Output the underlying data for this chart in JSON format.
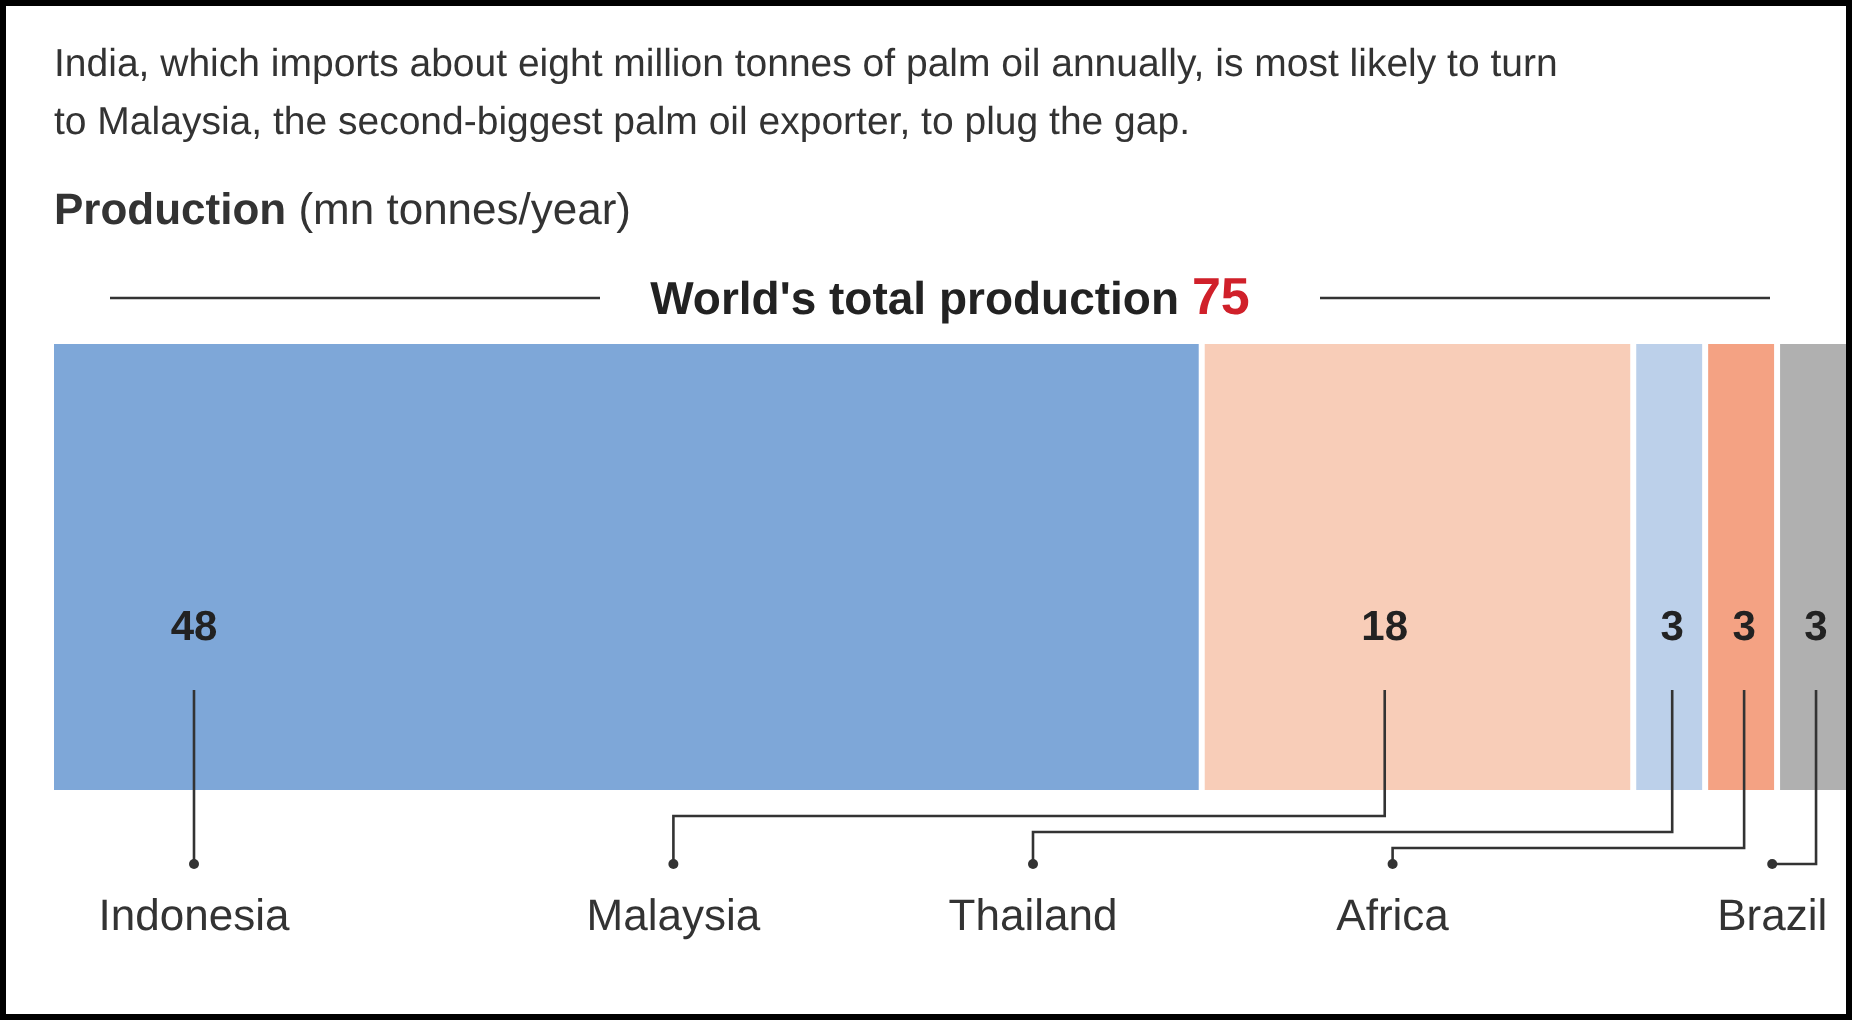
{
  "chart_data": {
    "type": "bar",
    "stacked": true,
    "orientation": "horizontal",
    "data_labels": true,
    "title": "India, which imports about eight million tonnes of palm oil annually, is most likely to turn to Malaysia, the second-biggest palm oil exporter, to plug the gap.",
    "subtitle": "Production (mn tonnes/year)",
    "annotations": [
      "World's total production 75"
    ],
    "categories": [
      null
    ],
    "series": [
      {
        "name": "Indonesia",
        "color": "#7ea7d8",
        "values": [
          48
        ]
      },
      {
        "name": "Malaysia",
        "color": "#f8cdb8",
        "values": [
          18
        ]
      },
      {
        "name": "Thailand",
        "color": "#bcd0ea",
        "values": [
          3
        ]
      },
      {
        "name": "Africa",
        "color": "#f4a283",
        "values": [
          3
        ]
      },
      {
        "name": "Brazil",
        "color": "#b0b0b0",
        "values": [
          3
        ]
      }
    ]
  }
}
